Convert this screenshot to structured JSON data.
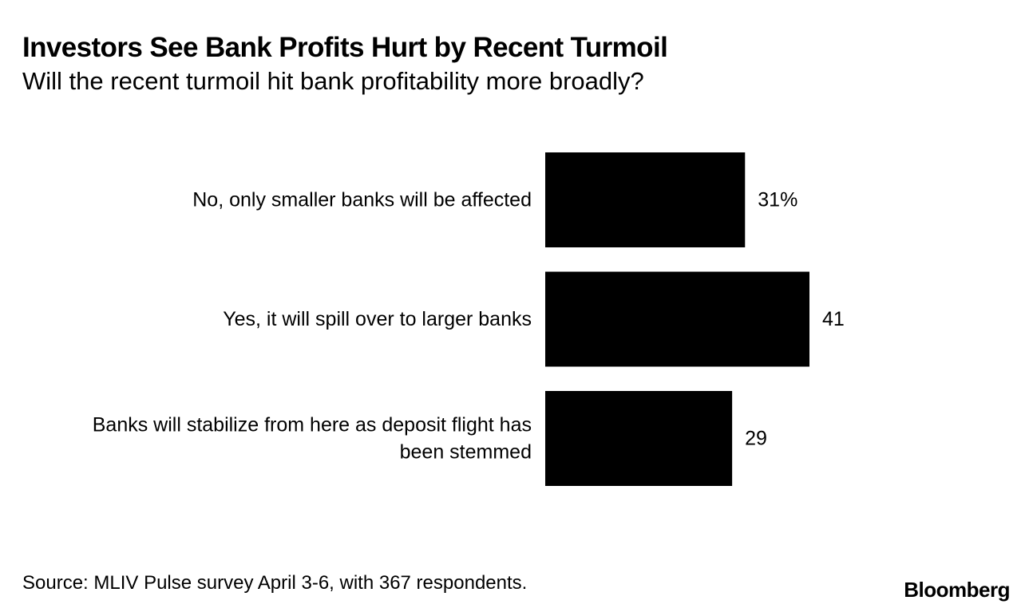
{
  "chart_data": {
    "type": "bar",
    "orientation": "horizontal",
    "title": "Investors See Bank Profits Hurt by Recent Turmoil",
    "subtitle": "Will the recent turmoil hit bank profitability more broadly?",
    "categories": [
      "No, only smaller banks will be affected",
      "Yes, it will spill over to larger banks",
      "Banks will stabilize from here as deposit flight has been stemmed"
    ],
    "category_lines": [
      [
        "No, only smaller banks will be affected"
      ],
      [
        "Yes, it will spill over to larger banks"
      ],
      [
        "Banks will stabilize from here as deposit flight has",
        "been stemmed"
      ]
    ],
    "values": [
      31,
      41,
      29
    ],
    "value_labels": [
      "31%",
      "41",
      "29"
    ],
    "bar_color": "#000000",
    "grid": false,
    "legend": "none"
  },
  "footer": {
    "source": "Source: MLIV Pulse survey April 3-6, with 367 respondents.",
    "brand": "Bloomberg"
  }
}
